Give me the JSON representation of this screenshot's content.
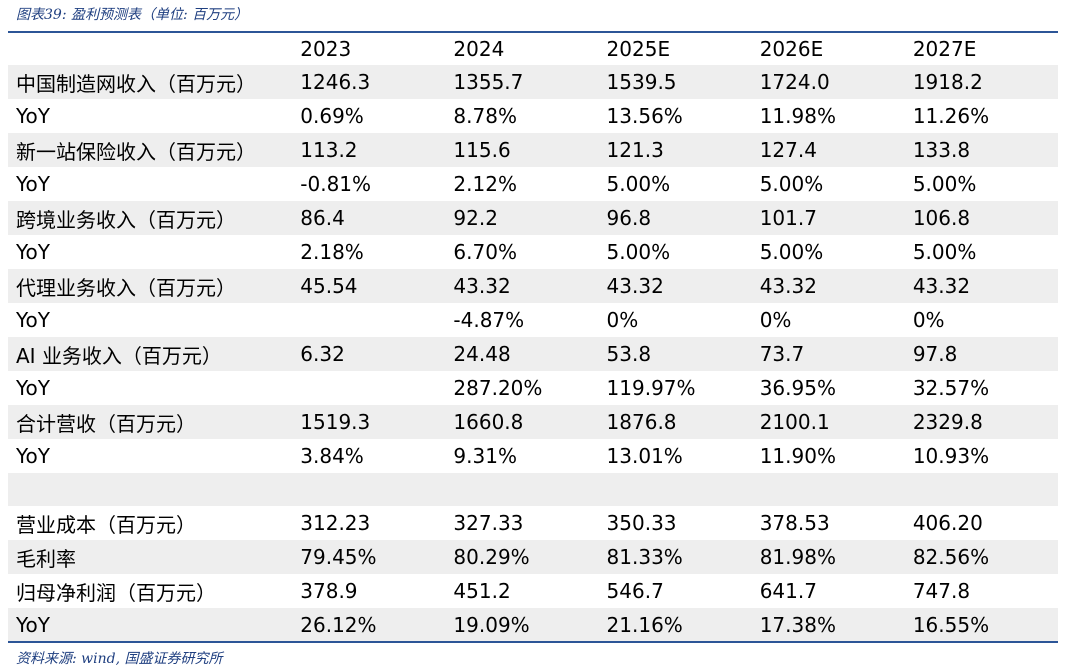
{
  "caption": "图表39: 盈利预测表（单位: 百万元）",
  "source": "资料来源: wind, 国盛证券研究所",
  "table": {
    "headers": [
      "",
      "2023",
      "2024",
      "2025E",
      "2026E",
      "2027E"
    ],
    "rows": [
      {
        "label": "中国制造网收入（百万元）",
        "cells": [
          "1246.3",
          "1355.7",
          "1539.5",
          "1724.0",
          "1918.2"
        ]
      },
      {
        "label": "YoY",
        "cells": [
          "0.69%",
          "8.78%",
          "13.56%",
          "11.98%",
          "11.26%"
        ]
      },
      {
        "label": "新一站保险收入（百万元）",
        "cells": [
          "113.2",
          "115.6",
          "121.3",
          "127.4",
          "133.8"
        ]
      },
      {
        "label": "YoY",
        "cells": [
          "-0.81%",
          "2.12%",
          "5.00%",
          "5.00%",
          "5.00%"
        ]
      },
      {
        "label": "跨境业务收入（百万元）",
        "cells": [
          "86.4",
          "92.2",
          "96.8",
          "101.7",
          "106.8"
        ]
      },
      {
        "label": "YoY",
        "cells": [
          "2.18%",
          "6.70%",
          "5.00%",
          "5.00%",
          "5.00%"
        ]
      },
      {
        "label": "代理业务收入（百万元）",
        "cells": [
          "45.54",
          "43.32",
          "43.32",
          "43.32",
          "43.32"
        ]
      },
      {
        "label": "YoY",
        "cells": [
          "",
          "-4.87%",
          "0%",
          "0%",
          "0%"
        ]
      },
      {
        "label": "AI 业务收入（百万元）",
        "cells": [
          "6.32",
          "24.48",
          "53.8",
          "73.7",
          "97.8"
        ]
      },
      {
        "label": "YoY",
        "cells": [
          "",
          "287.20%",
          "119.97%",
          "36.95%",
          "32.57%"
        ]
      },
      {
        "label": "合计营收（百万元）",
        "cells": [
          "1519.3",
          "1660.8",
          "1876.8",
          "2100.1",
          "2329.8"
        ]
      },
      {
        "label": "YoY",
        "cells": [
          "3.84%",
          "9.31%",
          "13.01%",
          "11.90%",
          "10.93%"
        ]
      },
      {
        "label": "",
        "cells": [
          "",
          "",
          "",
          "",
          ""
        ]
      },
      {
        "label": "营业成本（百万元）",
        "cells": [
          "312.23",
          "327.33",
          "350.33",
          "378.53",
          "406.20"
        ]
      },
      {
        "label": "毛利率",
        "cells": [
          "79.45%",
          "80.29%",
          "81.33%",
          "81.98%",
          "82.56%"
        ]
      },
      {
        "label": "归母净利润（百万元）",
        "cells": [
          "378.9",
          "451.2",
          "546.7",
          "641.7",
          "747.8"
        ]
      },
      {
        "label": "YoY",
        "cells": [
          "26.12%",
          "19.09%",
          "21.16%",
          "17.38%",
          "16.55%"
        ]
      }
    ]
  }
}
